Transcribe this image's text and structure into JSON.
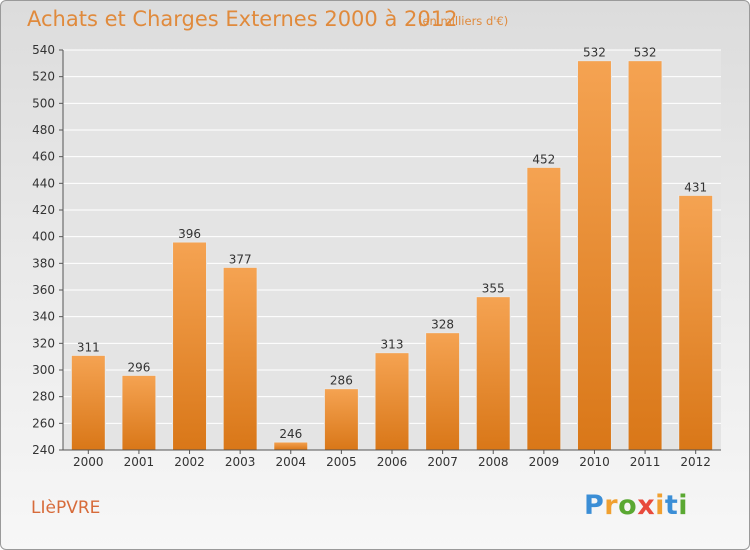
{
  "header": {
    "title": "Achats et Charges Externes 2000 à 2012",
    "subtitle": "(en milliers d'€)"
  },
  "footer": {
    "commune": "LIèPVRE",
    "logo": [
      "P",
      "r",
      "o",
      "x",
      "i",
      "t",
      "i"
    ],
    "logo_colors": [
      "#3b8ed6",
      "#f0a030",
      "#5aa832",
      "#e84a3c",
      "#f0a030",
      "#3b8ed6",
      "#5aa832"
    ]
  },
  "chart_data": {
    "type": "bar",
    "title": "Achats et Charges Externes 2000 à 2012",
    "subtitle": "(en milliers d'€)",
    "categories": [
      "2000",
      "2001",
      "2002",
      "2003",
      "2004",
      "2005",
      "2006",
      "2007",
      "2008",
      "2009",
      "2010",
      "2011",
      "2012"
    ],
    "values": [
      311,
      296,
      396,
      377,
      246,
      286,
      313,
      328,
      355,
      452,
      532,
      532,
      431
    ],
    "ylim": [
      240,
      540
    ],
    "yticks": [
      240,
      260,
      280,
      300,
      320,
      340,
      360,
      380,
      400,
      420,
      440,
      460,
      480,
      500,
      520,
      540
    ],
    "grid": true,
    "bar_color_top": "#f5a352",
    "bar_color_bottom": "#d97718",
    "grid_color": "#ffffff",
    "plot_background": "#e4e4e4"
  }
}
